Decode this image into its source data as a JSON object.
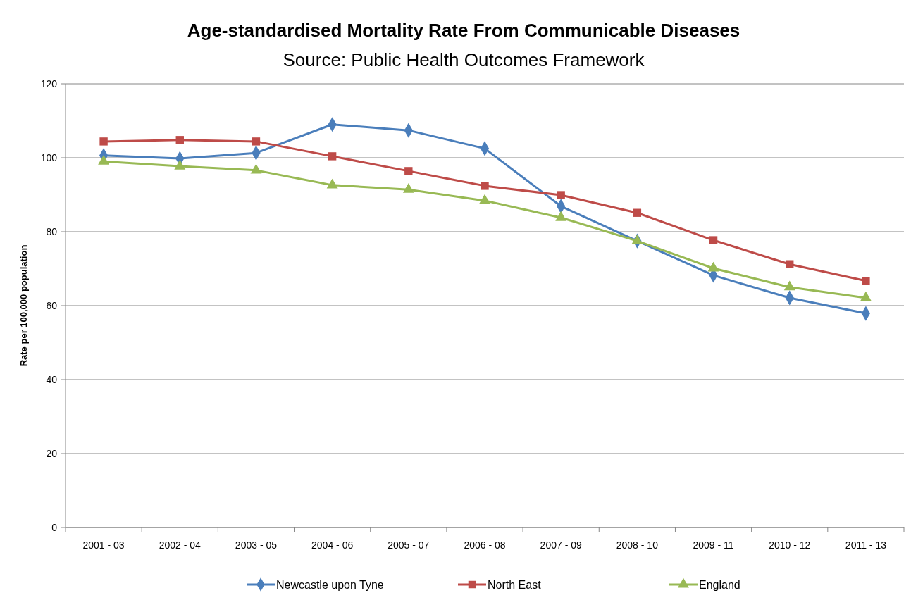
{
  "chart_data": {
    "type": "line",
    "title": "Age-standardised Mortality Rate From Communicable Diseases",
    "subtitle": "Source: Public Health Outcomes Framework",
    "ylabel": "Rate per 100,000 population",
    "categories": [
      "2001 - 03",
      "2002 - 04",
      "2003 - 05",
      "2004 - 06",
      "2005 - 07",
      "2006 - 08",
      "2007 - 09",
      "2008 - 10",
      "2009 - 11",
      "2010 - 12",
      "2011 - 13"
    ],
    "series": [
      {
        "name": "Newcastle upon Tyne",
        "color": "#4a7ebb",
        "marker": "diamond",
        "values": [
          100.6,
          99.8,
          101.3,
          109.0,
          107.4,
          102.5,
          86.9,
          77.5,
          68.2,
          62.1,
          57.9
        ]
      },
      {
        "name": "North East",
        "color": "#be4b48",
        "marker": "square",
        "values": [
          104.4,
          104.8,
          104.4,
          100.4,
          96.4,
          92.4,
          89.9,
          85.1,
          77.7,
          71.2,
          66.7
        ]
      },
      {
        "name": "England",
        "color": "#98b954",
        "marker": "triangle",
        "values": [
          99.0,
          97.7,
          96.6,
          92.6,
          91.4,
          88.4,
          83.8,
          77.5,
          70.1,
          65.0,
          62.1
        ]
      }
    ],
    "ylim": [
      0,
      120
    ],
    "yticks": [
      0,
      20,
      40,
      60,
      80,
      100,
      120
    ],
    "grid": "y",
    "legend": "bottom",
    "line_style": "solid"
  }
}
